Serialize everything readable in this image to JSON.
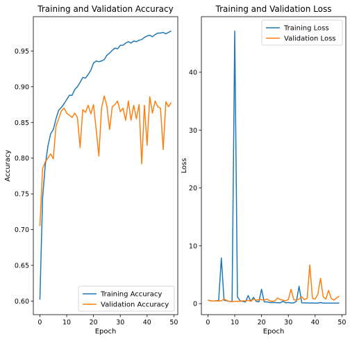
{
  "chart_data": [
    {
      "type": "line",
      "title": "Training and Validation Accuracy",
      "xlabel": "Epoch",
      "ylabel": "Accuracy",
      "xlim": [
        -2.45,
        51.45
      ],
      "ylim": [
        0.581,
        0.998
      ],
      "xticks": [
        0,
        10,
        20,
        30,
        40,
        50
      ],
      "yticks": [
        0.6,
        0.65,
        0.7,
        0.75,
        0.8,
        0.85,
        0.9,
        0.95
      ],
      "ytick_labels": [
        "0.60",
        "0.65",
        "0.70",
        "0.75",
        "0.80",
        "0.85",
        "0.90",
        "0.95"
      ],
      "legend_position": "lower right",
      "x": [
        0,
        1,
        2,
        3,
        4,
        5,
        6,
        7,
        8,
        9,
        10,
        11,
        12,
        13,
        14,
        15,
        16,
        17,
        18,
        19,
        20,
        21,
        22,
        23,
        24,
        25,
        26,
        27,
        28,
        29,
        30,
        31,
        32,
        33,
        34,
        35,
        36,
        37,
        38,
        39,
        40,
        41,
        42,
        43,
        44,
        45,
        46,
        47,
        48,
        49
      ],
      "series": [
        {
          "name": "Training Accuracy",
          "color": "#1f77b4",
          "values": [
            0.602,
            0.744,
            0.79,
            0.817,
            0.834,
            0.84,
            0.855,
            0.867,
            0.871,
            0.876,
            0.882,
            0.888,
            0.888,
            0.896,
            0.9,
            0.906,
            0.913,
            0.912,
            0.917,
            0.923,
            0.933,
            0.936,
            0.935,
            0.936,
            0.938,
            0.944,
            0.947,
            0.951,
            0.954,
            0.953,
            0.958,
            0.958,
            0.961,
            0.963,
            0.961,
            0.964,
            0.963,
            0.965,
            0.966,
            0.969,
            0.971,
            0.972,
            0.97,
            0.973,
            0.975,
            0.975,
            0.976,
            0.974,
            0.976,
            0.978
          ]
        },
        {
          "name": "Validation Accuracy",
          "color": "#ff7f0e",
          "values": [
            0.705,
            0.785,
            0.795,
            0.8,
            0.806,
            0.799,
            0.845,
            0.855,
            0.866,
            0.87,
            0.863,
            0.86,
            0.857,
            0.863,
            0.857,
            0.815,
            0.868,
            0.864,
            0.874,
            0.862,
            0.875,
            0.84,
            0.803,
            0.87,
            0.887,
            0.873,
            0.84,
            0.872,
            0.875,
            0.88,
            0.865,
            0.87,
            0.853,
            0.88,
            0.853,
            0.874,
            0.855,
            0.875,
            0.792,
            0.874,
            0.818,
            0.886,
            0.863,
            0.88,
            0.872,
            0.87,
            0.812,
            0.879,
            0.872,
            0.878
          ]
        }
      ]
    },
    {
      "type": "line",
      "title": "Training and Validation Loss",
      "xlabel": "Epoch",
      "ylabel": "Loss",
      "xlim": [
        -2.45,
        51.45
      ],
      "ylim": [
        -1.9,
        49.6
      ],
      "xticks": [
        0,
        10,
        20,
        30,
        40,
        50
      ],
      "yticks": [
        0,
        10,
        20,
        30,
        40
      ],
      "ytick_labels": [
        "0",
        "10",
        "20",
        "30",
        "40"
      ],
      "legend_position": "upper right",
      "x": [
        0,
        1,
        2,
        3,
        4,
        5,
        6,
        7,
        8,
        9,
        10,
        11,
        12,
        13,
        14,
        15,
        16,
        17,
        18,
        19,
        20,
        21,
        22,
        23,
        24,
        25,
        26,
        27,
        28,
        29,
        30,
        31,
        32,
        33,
        34,
        35,
        36,
        37,
        38,
        39,
        40,
        41,
        42,
        43,
        44,
        45,
        46,
        47,
        48,
        49
      ],
      "series": [
        {
          "name": "Training Loss",
          "color": "#1f77b4",
          "values": [
            0.6,
            0.5,
            0.45,
            0.5,
            0.6,
            7.9,
            0.6,
            0.5,
            0.4,
            0.35,
            47.1,
            1.2,
            0.5,
            0.4,
            0.3,
            1.4,
            0.4,
            1.1,
            0.4,
            0.3,
            2.5,
            0.3,
            0.3,
            0.2,
            0.2,
            0.2,
            0.15,
            0.15,
            0.4,
            0.15,
            0.2,
            0.12,
            0.12,
            0.4,
            3.0,
            0.15,
            0.12,
            0.12,
            0.1,
            0.12,
            0.1,
            0.1,
            0.2,
            0.1,
            0.1,
            0.1,
            0.1,
            0.1,
            0.1,
            0.1
          ]
        },
        {
          "name": "Validation Loss",
          "color": "#ff7f0e",
          "values": [
            0.6,
            0.5,
            0.45,
            0.5,
            0.45,
            0.5,
            0.8,
            0.55,
            0.4,
            0.35,
            0.4,
            0.4,
            0.4,
            0.5,
            0.45,
            0.6,
            0.4,
            0.8,
            0.6,
            0.7,
            0.7,
            0.6,
            0.8,
            0.5,
            0.4,
            0.5,
            1.0,
            0.7,
            0.6,
            0.5,
            0.7,
            2.5,
            0.7,
            0.6,
            0.8,
            1.2,
            0.7,
            0.9,
            6.7,
            0.9,
            0.8,
            1.6,
            4.4,
            1.2,
            0.8,
            2.3,
            0.9,
            0.6,
            1.0,
            1.3
          ]
        }
      ]
    }
  ]
}
